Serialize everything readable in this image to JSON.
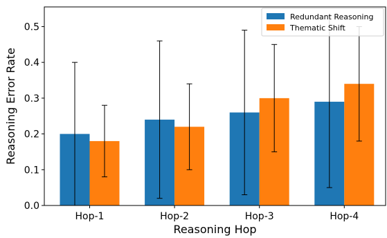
{
  "chart_data": {
    "type": "bar",
    "categories": [
      "Hop-1",
      "Hop-2",
      "Hop-3",
      "Hop-4"
    ],
    "series": [
      {
        "name": "Redundant Reasoning",
        "color": "#1f77b4",
        "values": [
          0.2,
          0.24,
          0.26,
          0.29
        ],
        "err_low": [
          0.0,
          0.02,
          0.03,
          0.05
        ],
        "err_high": [
          0.4,
          0.46,
          0.49,
          0.53
        ]
      },
      {
        "name": "Thematic Shift",
        "color": "#ff7f0e",
        "values": [
          0.18,
          0.22,
          0.3,
          0.34
        ],
        "err_low": [
          0.08,
          0.1,
          0.15,
          0.18
        ],
        "err_high": [
          0.28,
          0.34,
          0.45,
          0.5
        ]
      }
    ],
    "xlabel": "Reasoning Hop",
    "ylabel": "Reasoning Error Rate",
    "ylim": [
      0,
      0.555
    ],
    "yticks": [
      "0.0",
      "0.1",
      "0.2",
      "0.3",
      "0.4",
      "0.5"
    ],
    "grid": false,
    "legend_position": "top-right"
  }
}
